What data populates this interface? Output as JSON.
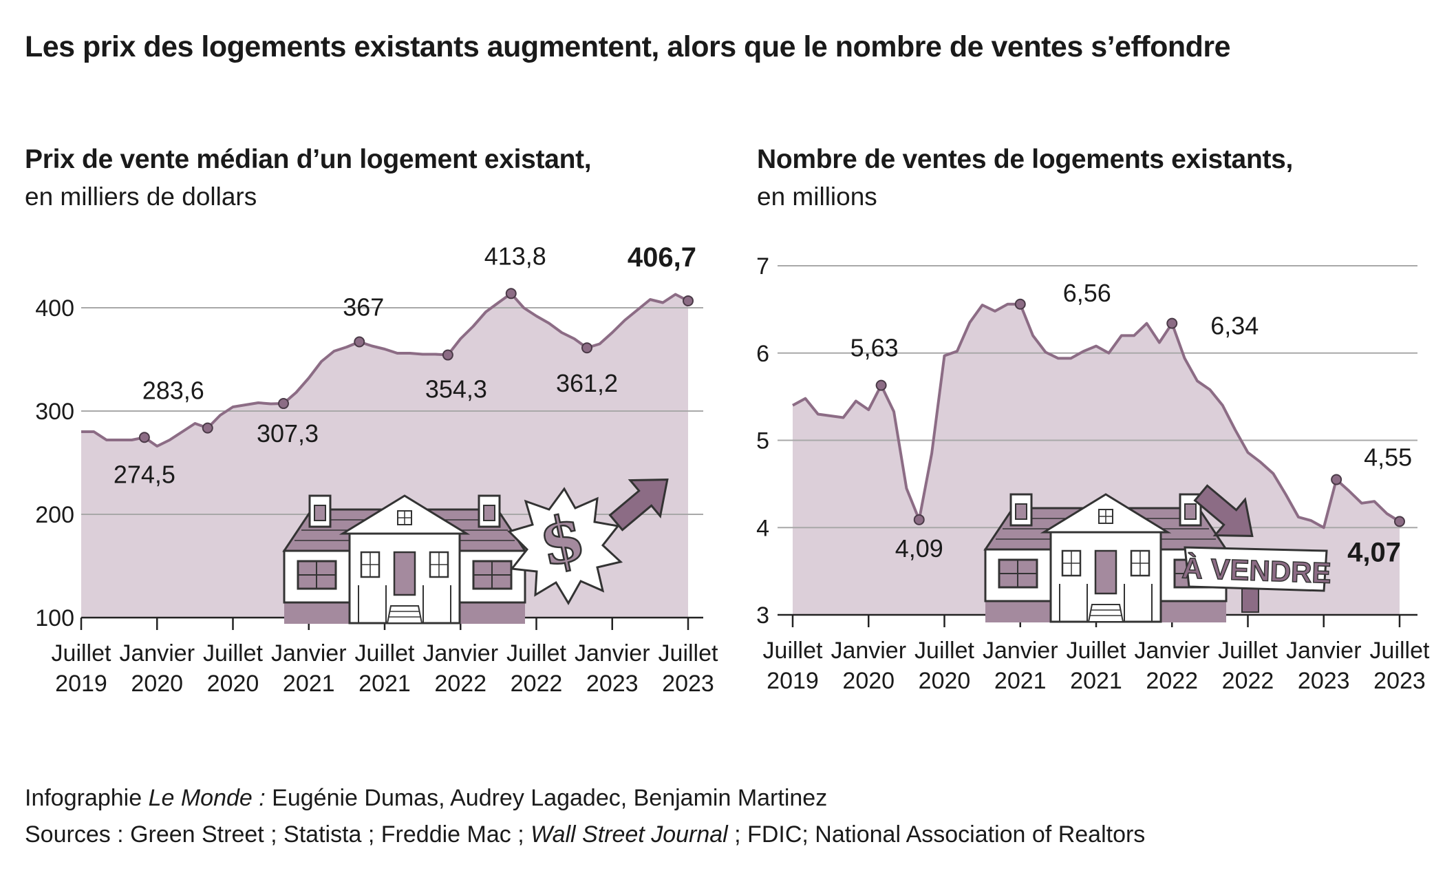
{
  "title": "Les prix des logements existants augmentent, alors que le nombre de ventes s’effondre",
  "colors": {
    "area": "#dccfd9",
    "line": "#8c6c85",
    "grid": "#a8a8a8",
    "text": "#1a1a1a",
    "illustration": "#a48a9e"
  },
  "icons": [
    "house-illustration",
    "dollar-starburst-icon",
    "up-arrow-icon",
    "down-arrow-icon",
    "for-sale-sign-icon"
  ],
  "chart_data": [
    {
      "type": "area",
      "title": "Prix de vente médian d’un logement existant,",
      "subtitle": "en milliers de dollars",
      "x_tick_labels": [
        [
          "Juillet",
          "2019"
        ],
        [
          "Janvier",
          "2020"
        ],
        [
          "Juillet",
          "2020"
        ],
        [
          "Janvier",
          "2021"
        ],
        [
          "Juillet",
          "2021"
        ],
        [
          "Janvier",
          "2022"
        ],
        [
          "Juillet",
          "2022"
        ],
        [
          "Janvier",
          "2023"
        ],
        [
          "Juillet",
          "2023"
        ]
      ],
      "y_ticks": [
        100,
        200,
        300,
        400
      ],
      "ylim": [
        100,
        400
      ],
      "grid": true,
      "series": [
        {
          "x": [
            "2019-07",
            "2019-08",
            "2019-09",
            "2019-10",
            "2019-11",
            "2019-12",
            "2020-01",
            "2020-02",
            "2020-03",
            "2020-04",
            "2020-05",
            "2020-06",
            "2020-07",
            "2020-08",
            "2020-09",
            "2020-10",
            "2020-11",
            "2020-12",
            "2021-01",
            "2021-02",
            "2021-03",
            "2021-04",
            "2021-05",
            "2021-06",
            "2021-07",
            "2021-08",
            "2021-09",
            "2021-10",
            "2021-11",
            "2021-12",
            "2022-01",
            "2022-02",
            "2022-03",
            "2022-04",
            "2022-05",
            "2022-06",
            "2022-07",
            "2022-08",
            "2022-09",
            "2022-10",
            "2022-11",
            "2022-12",
            "2023-01",
            "2023-02",
            "2023-03",
            "2023-04",
            "2023-05",
            "2023-06",
            "2023-07"
          ],
          "y": [
            280,
            280,
            272,
            272,
            272,
            274.5,
            266,
            272,
            280,
            288,
            283.6,
            296,
            304,
            306,
            308,
            307,
            307.3,
            318,
            332,
            348,
            358,
            362,
            367,
            363,
            360,
            356,
            356,
            355,
            355,
            354.3,
            370,
            382,
            396,
            405,
            413.8,
            400,
            392,
            385,
            376,
            370,
            361.2,
            365,
            376,
            388,
            398,
            408,
            405,
            413,
            406.7
          ]
        }
      ],
      "annotations": [
        {
          "x": "2019-12",
          "y": 274.5,
          "label": "274,5"
        },
        {
          "x": "2020-05",
          "y": 283.6,
          "label": "283,6"
        },
        {
          "x": "2020-11",
          "y": 307.3,
          "label": "307,3"
        },
        {
          "x": "2021-05",
          "y": 367,
          "label": "367"
        },
        {
          "x": "2021-12",
          "y": 354.3,
          "label": "354,3"
        },
        {
          "x": "2022-05",
          "y": 413.8,
          "label": "413,8"
        },
        {
          "x": "2022-11",
          "y": 361.2,
          "label": "361,2"
        },
        {
          "x": "2023-07",
          "y": 406.7,
          "label": "406,7",
          "bold": true
        }
      ]
    },
    {
      "type": "area",
      "title": "Nombre de ventes de logements existants,",
      "subtitle": "en millions",
      "x_tick_labels": [
        [
          "Juillet",
          "2019"
        ],
        [
          "Janvier",
          "2020"
        ],
        [
          "Juillet",
          "2020"
        ],
        [
          "Janvier",
          "2021"
        ],
        [
          "Juillet",
          "2021"
        ],
        [
          "Janvier",
          "2022"
        ],
        [
          "Juillet",
          "2022"
        ],
        [
          "Janvier",
          "2023"
        ],
        [
          "Juillet",
          "2023"
        ]
      ],
      "y_ticks": [
        3,
        4,
        5,
        6,
        7
      ],
      "ylim": [
        3,
        7
      ],
      "grid": true,
      "series": [
        {
          "x": [
            "2019-07",
            "2019-08",
            "2019-09",
            "2019-10",
            "2019-11",
            "2019-12",
            "2020-01",
            "2020-02",
            "2020-03",
            "2020-04",
            "2020-05",
            "2020-06",
            "2020-07",
            "2020-08",
            "2020-09",
            "2020-10",
            "2020-11",
            "2020-12",
            "2021-01",
            "2021-02",
            "2021-03",
            "2021-04",
            "2021-05",
            "2021-06",
            "2021-07",
            "2021-08",
            "2021-09",
            "2021-10",
            "2021-11",
            "2021-12",
            "2022-01",
            "2022-02",
            "2022-03",
            "2022-04",
            "2022-05",
            "2022-06",
            "2022-07",
            "2022-08",
            "2022-09",
            "2022-10",
            "2022-11",
            "2022-12",
            "2023-01",
            "2023-02",
            "2023-03",
            "2023-04",
            "2023-05",
            "2023-06",
            "2023-07"
          ],
          "y": [
            5.4,
            5.48,
            5.3,
            5.28,
            5.26,
            5.45,
            5.35,
            5.63,
            5.33,
            4.45,
            4.09,
            4.85,
            5.97,
            6.02,
            6.35,
            6.55,
            6.48,
            6.56,
            6.56,
            6.2,
            6.01,
            5.94,
            5.94,
            6.02,
            6.08,
            6.0,
            6.2,
            6.2,
            6.34,
            6.12,
            6.34,
            5.94,
            5.68,
            5.58,
            5.4,
            5.12,
            4.86,
            4.75,
            4.62,
            4.38,
            4.12,
            4.08,
            4.0,
            4.55,
            4.42,
            4.28,
            4.3,
            4.16,
            4.07
          ]
        }
      ],
      "annotations": [
        {
          "x": "2020-02",
          "y": 5.63,
          "label": "5,63"
        },
        {
          "x": "2020-05",
          "y": 4.09,
          "label": "4,09"
        },
        {
          "x": "2021-01",
          "y": 6.56,
          "label": "6,56"
        },
        {
          "x": "2022-01",
          "y": 6.34,
          "label": "6,34"
        },
        {
          "x": "2023-02",
          "y": 4.55,
          "label": "4,55"
        },
        {
          "x": "2023-07",
          "y": 4.07,
          "label": "4,07",
          "bold": true
        }
      ],
      "sign_text": "À VENDRE"
    }
  ],
  "credits": {
    "infographie_prefix": "Infographie",
    "publication": "Le Monde :",
    "authors": "Eugénie Dumas, Audrey Lagadec, Benjamin Martinez",
    "sources_prefix": "Sources : Green Street ; Statista ; Freddie Mac ;",
    "sources_italic": "Wall Street Journal",
    "sources_suffix": "; FDIC; National Association of Realtors"
  }
}
